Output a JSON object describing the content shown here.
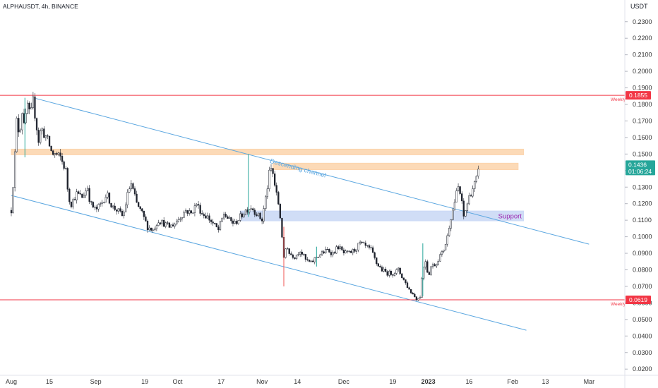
{
  "header": {
    "symbol_label": "ALPHAUSDT, 4h, BINANCE",
    "price_unit": "USDT"
  },
  "chart_data": {
    "type": "candlestick",
    "xlabel": "",
    "ylabel": "",
    "ylim": [
      0.015,
      0.24
    ],
    "y_ticks": [
      "0.2300",
      "0.2200",
      "0.2100",
      "0.2000",
      "0.1900",
      "0.1800",
      "0.1700",
      "0.1600",
      "0.1500",
      "0.1400",
      "0.1300",
      "0.1200",
      "0.1100",
      "0.1000",
      "0.0900",
      "0.0800",
      "0.0700",
      "0.0600",
      "0.0500",
      "0.0400",
      "0.0300",
      "0.0200"
    ],
    "x_ticks": [
      {
        "label": "Aug",
        "day": 0,
        "bold": false
      },
      {
        "label": "15",
        "day": 14,
        "bold": false
      },
      {
        "label": "Sep",
        "day": 31,
        "bold": false
      },
      {
        "label": "19",
        "day": 49,
        "bold": false
      },
      {
        "label": "Oct",
        "day": 61,
        "bold": false
      },
      {
        "label": "17",
        "day": 77,
        "bold": false
      },
      {
        "label": "Nov",
        "day": 92,
        "bold": false
      },
      {
        "label": "14",
        "day": 105,
        "bold": false
      },
      {
        "label": "Dec",
        "day": 122,
        "bold": false
      },
      {
        "label": "19",
        "day": 140,
        "bold": false
      },
      {
        "label": "2023",
        "day": 153,
        "bold": true
      },
      {
        "label": "16",
        "day": 168,
        "bold": false
      },
      {
        "label": "Feb",
        "day": 184,
        "bold": false
      },
      {
        "label": "13",
        "day": 196,
        "bold": false
      },
      {
        "label": "Mar",
        "day": 212,
        "bold": false
      }
    ],
    "price_path": [
      [
        0,
        0.116
      ],
      [
        1,
        0.14
      ],
      [
        2,
        0.17
      ],
      [
        3,
        0.162
      ],
      [
        4,
        0.176
      ],
      [
        5,
        0.168
      ],
      [
        6,
        0.18
      ],
      [
        7,
        0.172
      ],
      [
        8,
        0.182
      ],
      [
        9,
        0.17
      ],
      [
        10,
        0.158
      ],
      [
        11,
        0.166
      ],
      [
        12,
        0.162
      ],
      [
        13,
        0.16
      ],
      [
        14,
        0.155
      ],
      [
        15,
        0.15
      ],
      [
        16,
        0.15
      ],
      [
        18,
        0.148
      ],
      [
        20,
        0.14
      ],
      [
        21,
        0.124
      ],
      [
        22,
        0.12
      ],
      [
        24,
        0.126
      ],
      [
        26,
        0.124
      ],
      [
        28,
        0.13
      ],
      [
        29,
        0.12
      ],
      [
        31,
        0.116
      ],
      [
        33,
        0.12
      ],
      [
        35,
        0.126
      ],
      [
        37,
        0.118
      ],
      [
        39,
        0.116
      ],
      [
        41,
        0.112
      ],
      [
        43,
        0.128
      ],
      [
        44,
        0.132
      ],
      [
        46,
        0.12
      ],
      [
        48,
        0.114
      ],
      [
        50,
        0.106
      ],
      [
        52,
        0.104
      ],
      [
        54,
        0.11
      ],
      [
        56,
        0.108
      ],
      [
        58,
        0.106
      ],
      [
        60,
        0.108
      ],
      [
        62,
        0.112
      ],
      [
        64,
        0.116
      ],
      [
        66,
        0.114
      ],
      [
        68,
        0.12
      ],
      [
        70,
        0.114
      ],
      [
        72,
        0.112
      ],
      [
        74,
        0.108
      ],
      [
        76,
        0.104
      ],
      [
        78,
        0.114
      ],
      [
        80,
        0.11
      ],
      [
        82,
        0.108
      ],
      [
        84,
        0.112
      ],
      [
        86,
        0.116
      ],
      [
        88,
        0.118
      ],
      [
        90,
        0.114
      ],
      [
        92,
        0.11
      ],
      [
        94,
        0.13
      ],
      [
        95,
        0.142
      ],
      [
        96,
        0.138
      ],
      [
        97,
        0.128
      ],
      [
        98,
        0.12
      ],
      [
        99,
        0.108
      ],
      [
        100,
        0.086
      ],
      [
        101,
        0.096
      ],
      [
        102,
        0.09
      ],
      [
        104,
        0.088
      ],
      [
        106,
        0.092
      ],
      [
        108,
        0.086
      ],
      [
        110,
        0.084
      ],
      [
        112,
        0.088
      ],
      [
        114,
        0.09
      ],
      [
        116,
        0.092
      ],
      [
        118,
        0.09
      ],
      [
        120,
        0.094
      ],
      [
        122,
        0.09
      ],
      [
        124,
        0.09
      ],
      [
        126,
        0.092
      ],
      [
        128,
        0.096
      ],
      [
        130,
        0.094
      ],
      [
        132,
        0.092
      ],
      [
        134,
        0.084
      ],
      [
        136,
        0.08
      ],
      [
        138,
        0.078
      ],
      [
        140,
        0.078
      ],
      [
        142,
        0.08
      ],
      [
        144,
        0.074
      ],
      [
        146,
        0.068
      ],
      [
        148,
        0.064
      ],
      [
        149,
        0.062
      ],
      [
        150,
        0.064
      ],
      [
        151,
        0.08
      ],
      [
        152,
        0.086
      ],
      [
        153,
        0.076
      ],
      [
        154,
        0.082
      ],
      [
        156,
        0.084
      ],
      [
        157,
        0.088
      ],
      [
        158,
        0.09
      ],
      [
        159,
        0.094
      ],
      [
        160,
        0.1
      ],
      [
        161,
        0.11
      ],
      [
        162,
        0.116
      ],
      [
        163,
        0.124
      ],
      [
        164,
        0.13
      ],
      [
        165,
        0.124
      ],
      [
        166,
        0.112
      ],
      [
        167,
        0.118
      ],
      [
        168,
        0.124
      ],
      [
        169,
        0.128
      ],
      [
        170,
        0.132
      ],
      [
        171,
        0.136
      ],
      [
        172,
        0.144
      ]
    ],
    "highlighted_wicks": [
      {
        "day": 5,
        "low": 0.148,
        "high": 0.184,
        "color": "#26a69a"
      },
      {
        "day": 87,
        "low": 0.112,
        "high": 0.15,
        "color": "#26a69a"
      },
      {
        "day": 100,
        "low": 0.07,
        "high": 0.106,
        "color": "#ef5350"
      },
      {
        "day": 151,
        "low": 0.064,
        "high": 0.096,
        "color": "#26a69a"
      },
      {
        "day": 112,
        "low": 0.082,
        "high": 0.094,
        "color": "#26a69a"
      }
    ],
    "horizontal_levels": [
      {
        "value": 0.1855,
        "label": "0.1855",
        "note": "Weekly",
        "color": "#f23645"
      },
      {
        "value": 0.0619,
        "label": "0.0619",
        "note": "Weekly",
        "color": "#f23645"
      }
    ],
    "current_price": {
      "value": 0.1436,
      "label": "0.1436",
      "countdown": "01:06:24",
      "color": "#26a69a"
    },
    "zones": [
      {
        "day_start": 0,
        "day_end": 188,
        "low": 0.1495,
        "high": 0.153,
        "color": "#fbd3aa"
      },
      {
        "day_start": 96,
        "day_end": 186,
        "low": 0.1405,
        "high": 0.1445,
        "color": "#fbd3aa"
      },
      {
        "day_start": 84,
        "day_end": 188,
        "low": 0.1096,
        "high": 0.1156,
        "color": "#c8d7f5",
        "label": "Support",
        "label_color": "#9c27b0"
      }
    ],
    "channel_lines": [
      {
        "start": [
          9,
          0.1836
        ],
        "end": [
          212,
          0.0955
        ],
        "color": "#5aa6e0",
        "label": "Descending channel"
      },
      {
        "start": [
          0,
          0.125
        ],
        "end": [
          189,
          0.0435
        ],
        "color": "#5aa6e0"
      }
    ]
  }
}
